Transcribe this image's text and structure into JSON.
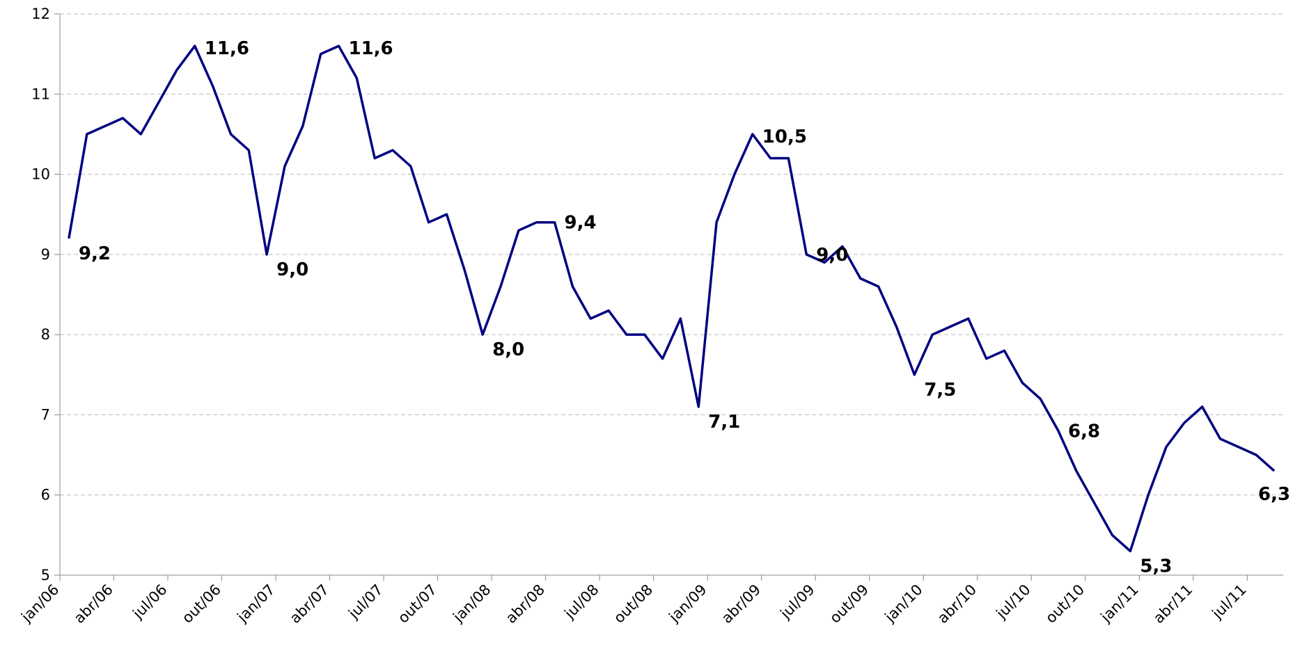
{
  "chart_data": {
    "type": "line",
    "categories": [
      "jan/06",
      null,
      null,
      "abr/06",
      null,
      null,
      "jul/06",
      null,
      null,
      "out/06",
      null,
      null,
      "jan/07",
      null,
      null,
      "abr/07",
      null,
      null,
      "jul/07",
      null,
      null,
      "out/07",
      null,
      null,
      "jan/08",
      null,
      null,
      "abr/08",
      null,
      null,
      "jul/08",
      null,
      null,
      "out/08",
      null,
      null,
      "jan/09",
      null,
      null,
      "abr/09",
      null,
      null,
      "jul/09",
      null,
      null,
      "out/09",
      null,
      null,
      "jan/10",
      null,
      null,
      "abr/10",
      null,
      null,
      "jul/10",
      null,
      null,
      "out/10",
      null,
      null,
      "jan/11",
      null,
      null,
      "abr/11",
      null,
      null,
      "jul/11",
      null
    ],
    "series": [
      {
        "color": "#000080",
        "values": [
          9.2,
          10.5,
          10.6,
          10.7,
          10.5,
          10.9,
          11.3,
          11.6,
          11.1,
          10.5,
          10.3,
          9.0,
          10.1,
          10.6,
          11.5,
          11.6,
          11.2,
          10.2,
          10.3,
          10.1,
          9.4,
          9.5,
          8.8,
          8.0,
          8.6,
          9.3,
          9.4,
          9.4,
          8.6,
          8.2,
          8.3,
          8.0,
          8.0,
          7.7,
          8.2,
          7.1,
          9.4,
          10.0,
          10.5,
          10.2,
          10.2,
          9.0,
          8.9,
          9.1,
          8.7,
          8.6,
          8.1,
          7.5,
          8.0,
          8.1,
          8.2,
          7.7,
          7.8,
          7.4,
          7.2,
          6.8,
          6.3,
          5.9,
          5.5,
          5.3,
          6.0,
          6.6,
          6.9,
          7.1,
          6.7,
          6.6,
          6.5,
          6.3
        ],
        "value_labels": [
          "9,2",
          null,
          null,
          null,
          null,
          null,
          null,
          "11,6",
          null,
          null,
          null,
          "9,0",
          null,
          null,
          null,
          "11,6",
          null,
          null,
          null,
          null,
          null,
          null,
          null,
          "8,0",
          null,
          null,
          null,
          "9,4",
          null,
          null,
          null,
          null,
          null,
          null,
          null,
          "7,1",
          null,
          null,
          "10,5",
          null,
          null,
          "9,0",
          null,
          null,
          null,
          null,
          null,
          "7,5",
          null,
          null,
          null,
          null,
          null,
          null,
          null,
          "6,8",
          null,
          null,
          null,
          "5,3",
          null,
          null,
          null,
          null,
          null,
          null,
          null,
          "6,3"
        ]
      }
    ],
    "ylim": [
      5,
      12
    ],
    "yticks": [
      5,
      6,
      7,
      8,
      9,
      10,
      11,
      12
    ],
    "grid": true
  }
}
